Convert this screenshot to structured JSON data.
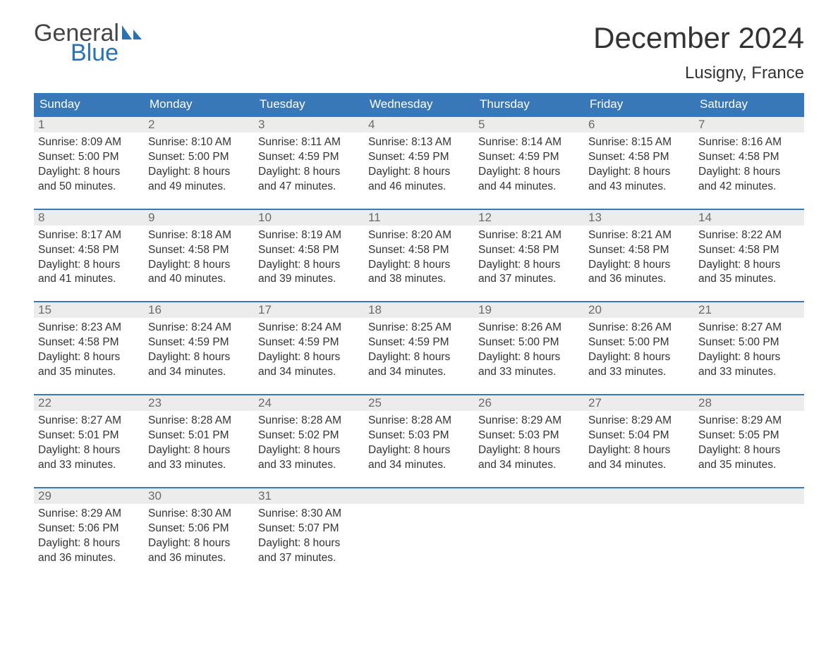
{
  "logo": {
    "word1": "General",
    "word2": "Blue",
    "word1_color": "#444444",
    "word2_color": "#2a72b5"
  },
  "title": "December 2024",
  "location": "Lusigny, France",
  "colors": {
    "header_bg": "#3878b8",
    "header_text": "#ffffff",
    "daynum_bg": "#ececec",
    "daynum_text": "#6b6b6b",
    "body_text": "#333333",
    "week_border": "#3878b8",
    "page_bg": "#ffffff"
  },
  "day_labels": [
    "Sunday",
    "Monday",
    "Tuesday",
    "Wednesday",
    "Thursday",
    "Friday",
    "Saturday"
  ],
  "weeks": [
    [
      {
        "n": "1",
        "sunrise": "Sunrise: 8:09 AM",
        "sunset": "Sunset: 5:00 PM",
        "d1": "Daylight: 8 hours",
        "d2": "and 50 minutes."
      },
      {
        "n": "2",
        "sunrise": "Sunrise: 8:10 AM",
        "sunset": "Sunset: 5:00 PM",
        "d1": "Daylight: 8 hours",
        "d2": "and 49 minutes."
      },
      {
        "n": "3",
        "sunrise": "Sunrise: 8:11 AM",
        "sunset": "Sunset: 4:59 PM",
        "d1": "Daylight: 8 hours",
        "d2": "and 47 minutes."
      },
      {
        "n": "4",
        "sunrise": "Sunrise: 8:13 AM",
        "sunset": "Sunset: 4:59 PM",
        "d1": "Daylight: 8 hours",
        "d2": "and 46 minutes."
      },
      {
        "n": "5",
        "sunrise": "Sunrise: 8:14 AM",
        "sunset": "Sunset: 4:59 PM",
        "d1": "Daylight: 8 hours",
        "d2": "and 44 minutes."
      },
      {
        "n": "6",
        "sunrise": "Sunrise: 8:15 AM",
        "sunset": "Sunset: 4:58 PM",
        "d1": "Daylight: 8 hours",
        "d2": "and 43 minutes."
      },
      {
        "n": "7",
        "sunrise": "Sunrise: 8:16 AM",
        "sunset": "Sunset: 4:58 PM",
        "d1": "Daylight: 8 hours",
        "d2": "and 42 minutes."
      }
    ],
    [
      {
        "n": "8",
        "sunrise": "Sunrise: 8:17 AM",
        "sunset": "Sunset: 4:58 PM",
        "d1": "Daylight: 8 hours",
        "d2": "and 41 minutes."
      },
      {
        "n": "9",
        "sunrise": "Sunrise: 8:18 AM",
        "sunset": "Sunset: 4:58 PM",
        "d1": "Daylight: 8 hours",
        "d2": "and 40 minutes."
      },
      {
        "n": "10",
        "sunrise": "Sunrise: 8:19 AM",
        "sunset": "Sunset: 4:58 PM",
        "d1": "Daylight: 8 hours",
        "d2": "and 39 minutes."
      },
      {
        "n": "11",
        "sunrise": "Sunrise: 8:20 AM",
        "sunset": "Sunset: 4:58 PM",
        "d1": "Daylight: 8 hours",
        "d2": "and 38 minutes."
      },
      {
        "n": "12",
        "sunrise": "Sunrise: 8:21 AM",
        "sunset": "Sunset: 4:58 PM",
        "d1": "Daylight: 8 hours",
        "d2": "and 37 minutes."
      },
      {
        "n": "13",
        "sunrise": "Sunrise: 8:21 AM",
        "sunset": "Sunset: 4:58 PM",
        "d1": "Daylight: 8 hours",
        "d2": "and 36 minutes."
      },
      {
        "n": "14",
        "sunrise": "Sunrise: 8:22 AM",
        "sunset": "Sunset: 4:58 PM",
        "d1": "Daylight: 8 hours",
        "d2": "and 35 minutes."
      }
    ],
    [
      {
        "n": "15",
        "sunrise": "Sunrise: 8:23 AM",
        "sunset": "Sunset: 4:58 PM",
        "d1": "Daylight: 8 hours",
        "d2": "and 35 minutes."
      },
      {
        "n": "16",
        "sunrise": "Sunrise: 8:24 AM",
        "sunset": "Sunset: 4:59 PM",
        "d1": "Daylight: 8 hours",
        "d2": "and 34 minutes."
      },
      {
        "n": "17",
        "sunrise": "Sunrise: 8:24 AM",
        "sunset": "Sunset: 4:59 PM",
        "d1": "Daylight: 8 hours",
        "d2": "and 34 minutes."
      },
      {
        "n": "18",
        "sunrise": "Sunrise: 8:25 AM",
        "sunset": "Sunset: 4:59 PM",
        "d1": "Daylight: 8 hours",
        "d2": "and 34 minutes."
      },
      {
        "n": "19",
        "sunrise": "Sunrise: 8:26 AM",
        "sunset": "Sunset: 5:00 PM",
        "d1": "Daylight: 8 hours",
        "d2": "and 33 minutes."
      },
      {
        "n": "20",
        "sunrise": "Sunrise: 8:26 AM",
        "sunset": "Sunset: 5:00 PM",
        "d1": "Daylight: 8 hours",
        "d2": "and 33 minutes."
      },
      {
        "n": "21",
        "sunrise": "Sunrise: 8:27 AM",
        "sunset": "Sunset: 5:00 PM",
        "d1": "Daylight: 8 hours",
        "d2": "and 33 minutes."
      }
    ],
    [
      {
        "n": "22",
        "sunrise": "Sunrise: 8:27 AM",
        "sunset": "Sunset: 5:01 PM",
        "d1": "Daylight: 8 hours",
        "d2": "and 33 minutes."
      },
      {
        "n": "23",
        "sunrise": "Sunrise: 8:28 AM",
        "sunset": "Sunset: 5:01 PM",
        "d1": "Daylight: 8 hours",
        "d2": "and 33 minutes."
      },
      {
        "n": "24",
        "sunrise": "Sunrise: 8:28 AM",
        "sunset": "Sunset: 5:02 PM",
        "d1": "Daylight: 8 hours",
        "d2": "and 33 minutes."
      },
      {
        "n": "25",
        "sunrise": "Sunrise: 8:28 AM",
        "sunset": "Sunset: 5:03 PM",
        "d1": "Daylight: 8 hours",
        "d2": "and 34 minutes."
      },
      {
        "n": "26",
        "sunrise": "Sunrise: 8:29 AM",
        "sunset": "Sunset: 5:03 PM",
        "d1": "Daylight: 8 hours",
        "d2": "and 34 minutes."
      },
      {
        "n": "27",
        "sunrise": "Sunrise: 8:29 AM",
        "sunset": "Sunset: 5:04 PM",
        "d1": "Daylight: 8 hours",
        "d2": "and 34 minutes."
      },
      {
        "n": "28",
        "sunrise": "Sunrise: 8:29 AM",
        "sunset": "Sunset: 5:05 PM",
        "d1": "Daylight: 8 hours",
        "d2": "and 35 minutes."
      }
    ],
    [
      {
        "n": "29",
        "sunrise": "Sunrise: 8:29 AM",
        "sunset": "Sunset: 5:06 PM",
        "d1": "Daylight: 8 hours",
        "d2": "and 36 minutes."
      },
      {
        "n": "30",
        "sunrise": "Sunrise: 8:30 AM",
        "sunset": "Sunset: 5:06 PM",
        "d1": "Daylight: 8 hours",
        "d2": "and 36 minutes."
      },
      {
        "n": "31",
        "sunrise": "Sunrise: 8:30 AM",
        "sunset": "Sunset: 5:07 PM",
        "d1": "Daylight: 8 hours",
        "d2": "and 37 minutes."
      },
      null,
      null,
      null,
      null
    ]
  ]
}
